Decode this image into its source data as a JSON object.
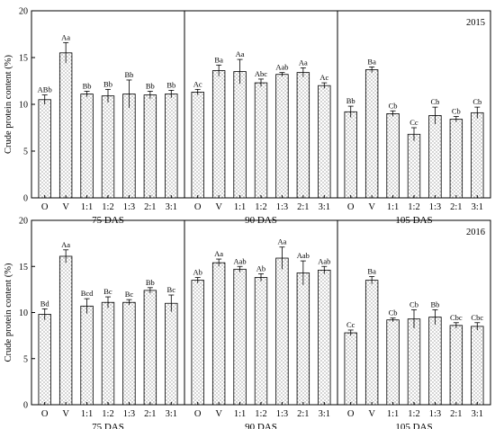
{
  "chart_data": [
    {
      "type": "bar",
      "year": "2015",
      "ylabel": "Crude protein content (%)",
      "ylim": [
        0,
        20
      ],
      "yticks": [
        0,
        5,
        10,
        15,
        20
      ],
      "groups": [
        {
          "label": "75 DAS",
          "categories": [
            "O",
            "V",
            "1:1",
            "1:2",
            "1:3",
            "2:1",
            "3:1"
          ],
          "values": [
            10.5,
            15.5,
            11.1,
            10.9,
            11.1,
            11.0,
            11.1
          ],
          "errors": [
            0.5,
            1.1,
            0.3,
            0.7,
            1.5,
            0.4,
            0.4
          ],
          "labels": [
            "ABb",
            "Aa",
            "Bb",
            "Bb",
            "Bb",
            "Bb",
            "Bb"
          ]
        },
        {
          "label": "90 DAS",
          "categories": [
            "O",
            "V",
            "1:1",
            "1:2",
            "1:3",
            "2:1",
            "3:1"
          ],
          "values": [
            11.3,
            13.6,
            13.5,
            12.3,
            13.2,
            13.4,
            12.0
          ],
          "errors": [
            0.3,
            0.6,
            1.3,
            0.4,
            0.2,
            0.5,
            0.3
          ],
          "labels": [
            "Ac",
            "Ba",
            "Aa",
            "Abc",
            "Aab",
            "Aa",
            "Ac"
          ]
        },
        {
          "label": "105 DAS",
          "categories": [
            "O",
            "V",
            "1:1",
            "1:2",
            "1:3",
            "2:1",
            "3:1"
          ],
          "values": [
            9.2,
            13.7,
            9.0,
            6.8,
            8.8,
            8.4,
            9.1
          ],
          "errors": [
            0.6,
            0.3,
            0.3,
            0.7,
            0.9,
            0.3,
            0.6
          ],
          "labels": [
            "Bb",
            "Ba",
            "Cb",
            "Cc",
            "Cb",
            "Cb",
            "Cb"
          ]
        }
      ]
    },
    {
      "type": "bar",
      "year": "2016",
      "ylabel": "Crude protein content (%)",
      "ylim": [
        0,
        20
      ],
      "yticks": [
        0,
        5,
        10,
        15,
        20
      ],
      "groups": [
        {
          "label": "75 DAS",
          "categories": [
            "O",
            "V",
            "1:1",
            "1:2",
            "1:3",
            "2:1",
            "3:1"
          ],
          "values": [
            9.8,
            16.1,
            10.7,
            11.1,
            11.1,
            12.4,
            11.0
          ],
          "errors": [
            0.6,
            0.7,
            0.8,
            0.6,
            0.3,
            0.3,
            0.9
          ],
          "labels": [
            "Bd",
            "Aa",
            "Bcd",
            "Bc",
            "Bc",
            "Bb",
            "Bc"
          ]
        },
        {
          "label": "90 DAS",
          "categories": [
            "O",
            "V",
            "1:1",
            "1:2",
            "1:3",
            "2:1",
            "3:1"
          ],
          "values": [
            13.5,
            15.4,
            14.7,
            13.8,
            15.9,
            14.3,
            14.6
          ],
          "errors": [
            0.3,
            0.4,
            0.3,
            0.4,
            1.2,
            1.3,
            0.4
          ],
          "labels": [
            "Ab",
            "Aa",
            "Aab",
            "Ab",
            "Aa",
            "Aab",
            "Aab"
          ]
        },
        {
          "label": "105 DAS",
          "categories": [
            "O",
            "V",
            "1:1",
            "1:2",
            "1:3",
            "2:1",
            "3:1"
          ],
          "values": [
            7.8,
            13.5,
            9.2,
            9.3,
            9.5,
            8.6,
            8.5
          ],
          "errors": [
            0.3,
            0.4,
            0.2,
            1.0,
            0.8,
            0.3,
            0.4
          ],
          "labels": [
            "Cc",
            "Ba",
            "Cb",
            "Cb",
            "Bb",
            "Cbc",
            "Cbc"
          ]
        }
      ]
    }
  ]
}
